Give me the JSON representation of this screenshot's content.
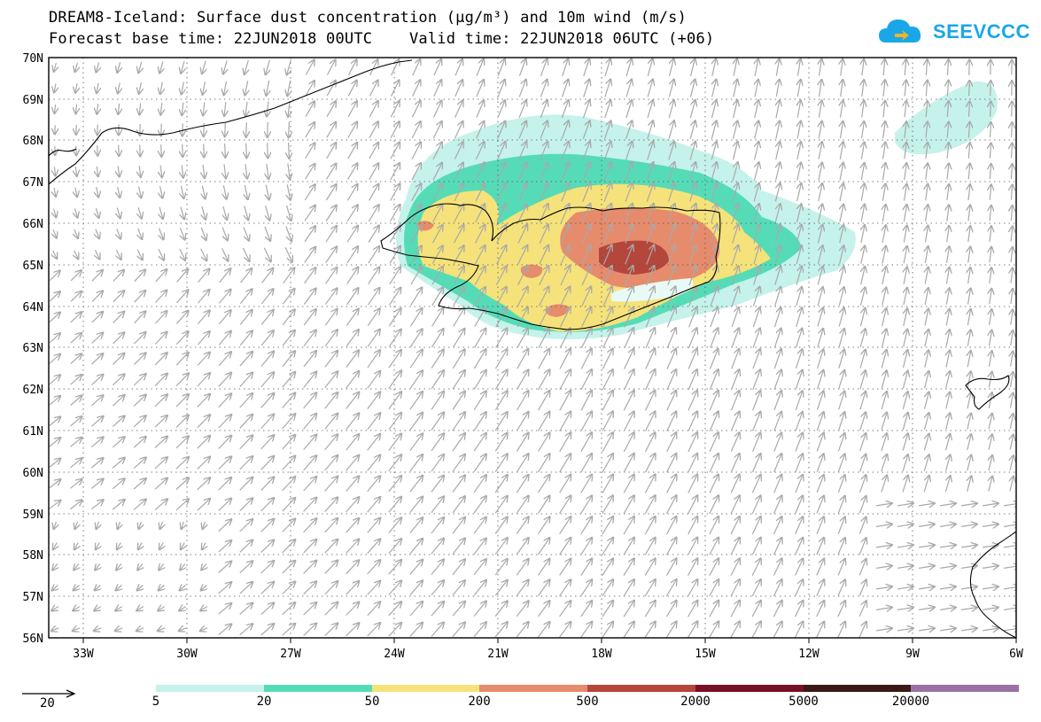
{
  "header": {
    "title_line1": "DREAM8-Iceland: Surface dust concentration (µg/m³) and 10m wind (m/s)",
    "title_line2": "Forecast base time: 22JUN2018 00UTC    Valid time: 22JUN2018 06UTC (+06)"
  },
  "logo": {
    "text": "SEEVCCC",
    "icon": "cloud-icon",
    "color": "#1aa7e8"
  },
  "map": {
    "lat_range": [
      56,
      70
    ],
    "lon_range": [
      -34,
      -6
    ],
    "lat_labels": [
      "70N",
      "69N",
      "68N",
      "67N",
      "66N",
      "65N",
      "64N",
      "63N",
      "62N",
      "61N",
      "60N",
      "59N",
      "58N",
      "57N",
      "56N"
    ],
    "lon_labels": [
      "33W",
      "30W",
      "27W",
      "24W",
      "21W",
      "18W",
      "15W",
      "12W",
      "9W",
      "6W"
    ],
    "wind_arrow_color": "#a9a9a9",
    "coastline_color": "#000000"
  },
  "legend": {
    "reference_vector_label": "20",
    "colors": [
      "#c5f2ea",
      "#55dcb7",
      "#f5e27a",
      "#e68b6c",
      "#b4463b",
      "#7a0f28",
      "#3a1a16",
      "#9a72a6"
    ],
    "labels": [
      "5",
      "20",
      "50",
      "200",
      "500",
      "2000",
      "5000",
      "20000"
    ]
  }
}
